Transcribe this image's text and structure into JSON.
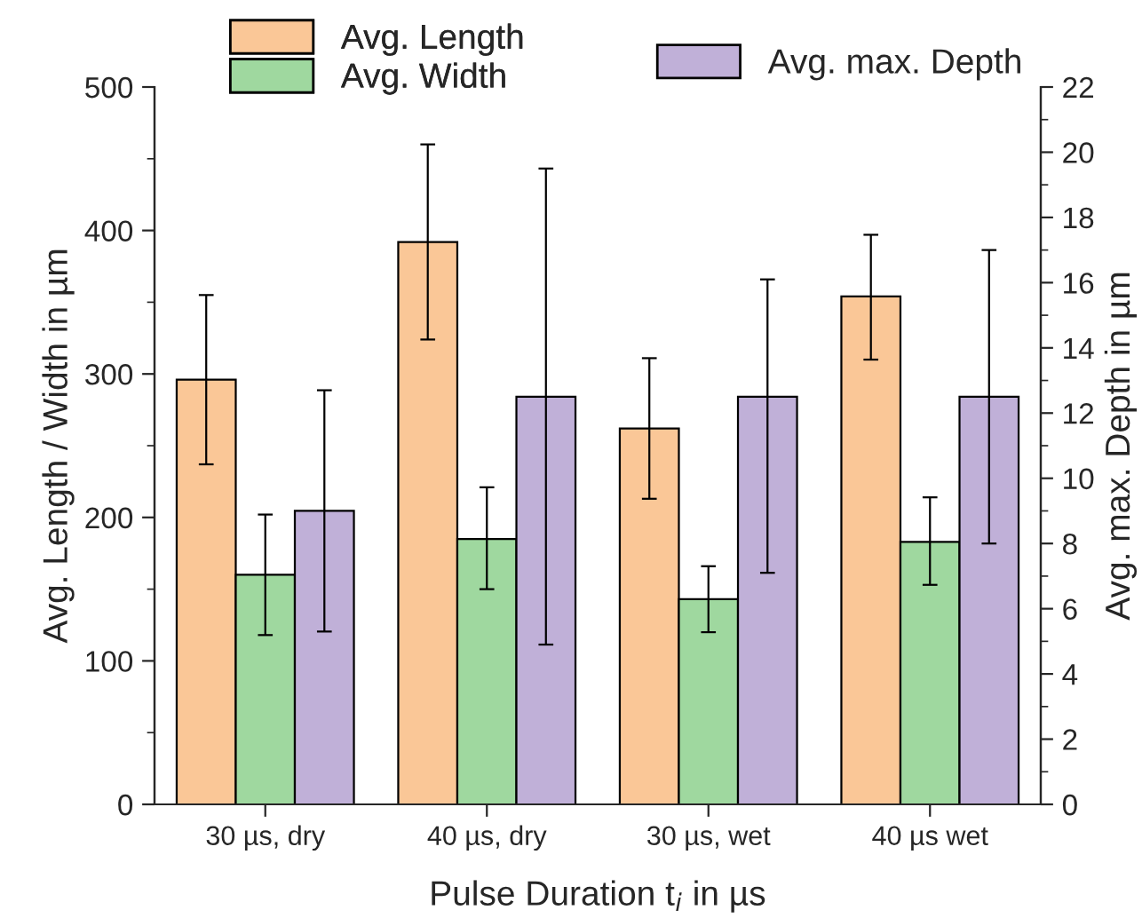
{
  "chart_data": {
    "type": "bar",
    "xlabel": "Pulse Duration t$_{i}$ in µs",
    "ylabel": "Avg. Length / Width in µm",
    "y2label": "Avg. max. Depth in µm",
    "categories": [
      "30 µs, dry",
      "40 µs, dry",
      "30 µs, wet",
      "40 µs wet"
    ],
    "series": [
      {
        "name": "Avg. Length",
        "color": "#fac797",
        "values": [
          296,
          392,
          262,
          354
        ],
        "errors": [
          [
            237,
            355
          ],
          [
            324,
            460
          ],
          [
            213,
            311
          ],
          [
            310,
            397
          ]
        ]
      },
      {
        "name": "Avg. Width",
        "color": "#9fd89f",
        "values": [
          160,
          185,
          143,
          183
        ],
        "errors": [
          [
            118,
            202
          ],
          [
            150,
            221
          ],
          [
            120,
            166
          ],
          [
            153,
            214
          ]
        ]
      },
      {
        "name": "Avg. max. Depth",
        "color": "#c0b0d8",
        "axis": "y2",
        "values": [
          9.0,
          12.5,
          12.5,
          12.5
        ],
        "errors": [
          [
            5.3,
            12.7
          ],
          [
            4.9,
            19.5
          ],
          [
            7.1,
            16.1
          ],
          [
            8.0,
            17.0
          ]
        ]
      }
    ],
    "ylim": [
      0,
      500
    ],
    "yticks": [
      0,
      100,
      200,
      300,
      400,
      500
    ],
    "y2lim": [
      0,
      22
    ],
    "y2ticks": [
      0,
      2,
      4,
      6,
      8,
      10,
      12,
      14,
      16,
      18,
      20,
      22
    ],
    "legend": "top",
    "grid": false
  }
}
